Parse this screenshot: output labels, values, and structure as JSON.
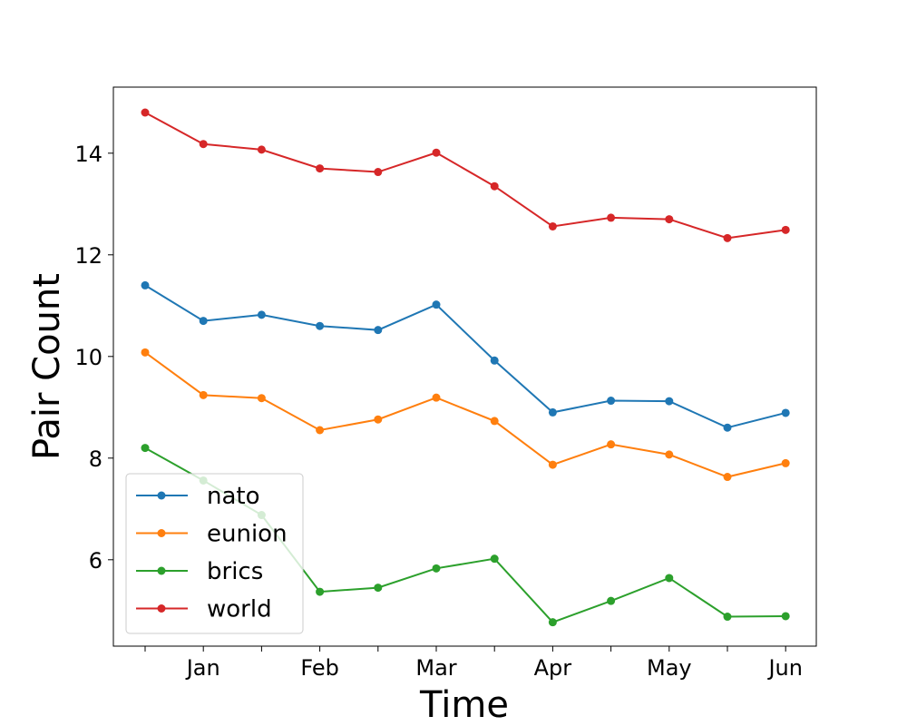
{
  "chart_data": {
    "type": "line",
    "title": "",
    "xlabel": "Time",
    "ylabel": "Pair Count",
    "x_tick_labels": [
      "Jan",
      "Feb",
      "Mar",
      "Apr",
      "May",
      "Jun"
    ],
    "y_ticks": [
      6,
      8,
      10,
      12,
      14
    ],
    "ylim": [
      4.3,
      15.3
    ],
    "grid": false,
    "legend_position": "lower-left",
    "series": [
      {
        "name": "nato",
        "color": "#1f77b4",
        "values": [
          11.4,
          10.7,
          10.82,
          10.6,
          10.52,
          11.02,
          9.92,
          8.9,
          9.13,
          9.12,
          8.6,
          8.89
        ]
      },
      {
        "name": "eunion",
        "color": "#ff7f0e",
        "values": [
          10.08,
          9.24,
          9.18,
          8.55,
          8.76,
          9.19,
          8.73,
          7.87,
          8.27,
          8.07,
          7.63,
          7.9
        ]
      },
      {
        "name": "brics",
        "color": "#2ca02c",
        "values": [
          8.2,
          7.56,
          6.88,
          5.37,
          5.45,
          5.83,
          6.02,
          4.77,
          5.19,
          5.64,
          4.88,
          4.89
        ]
      },
      {
        "name": "world",
        "color": "#d62728",
        "values": [
          14.8,
          14.18,
          14.07,
          13.7,
          13.63,
          14.01,
          13.35,
          12.56,
          12.73,
          12.7,
          12.33,
          12.49
        ]
      }
    ]
  }
}
